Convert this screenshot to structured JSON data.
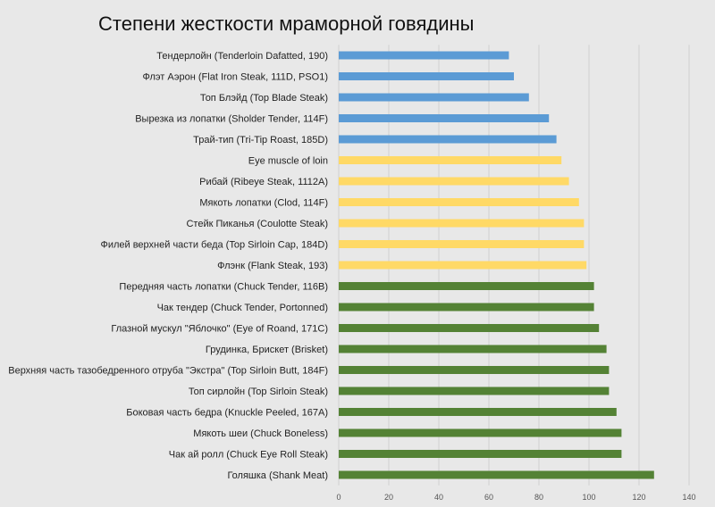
{
  "chart_data": {
    "type": "bar",
    "orientation": "horizontal",
    "title": "Степени жесткости мраморной говядины",
    "xlabel": "",
    "ylabel": "",
    "xlim": [
      0,
      140
    ],
    "xticks": [
      0,
      20,
      40,
      60,
      80,
      100,
      120,
      140
    ],
    "grid": true,
    "legend": "none",
    "colors": {
      "blue": "#5b9bd5",
      "yellow": "#ffd966",
      "green": "#548235",
      "grid": "#cfcfcf"
    },
    "categories": [
      "Тендерлойн (Tenderloin Dafatted, 190)",
      "Флэт Аэрон (Flat Iron Steak, 111D, PSO1)",
      "Топ Блэйд (Top Blade Steak)",
      "Вырезка из лопатки (Sholder Tender, 114F)",
      "Трай-тип (Tri-Tip Roast, 185D)",
      "Eye muscle of loin",
      "Рибай (Ribeye Steak, 1112A)",
      "Мякоть лопатки (Clod, 114F)",
      "Стейк Пиканья (Coulotte Steak)",
      "Филей верхней части беда (Top Sirloin Cap, 184D)",
      "Флэнк (Flank Steak, 193)",
      "Передняя часть лопатки (Chuck Tender, 116B)",
      "Чак тендер  (Chuck Tender, Portonned)",
      "Глазной мускул \"Яблочко\" (Eye of Roand, 171C)",
      "Грудинка, Брискет (Brisket)",
      "Верхняя часть тазобедренного отруба \"Экстра\" (Top Sirloin Butt, 184F)",
      "Топ сирлойн (Top Sirloin Steak)",
      "Боковая часть бедра (Knuckle Peeled, 167A)",
      "Мякоть шеи (Chuck Boneless)",
      "Чак ай ролл (Chuck Eye Roll Steak)",
      "Голяшка (Shank Meat)"
    ],
    "values": [
      68,
      70,
      76,
      84,
      87,
      89,
      92,
      96,
      98,
      98,
      99,
      102,
      102,
      104,
      107,
      108,
      108,
      111,
      113,
      113,
      126
    ],
    "bar_colors": [
      "blue",
      "blue",
      "blue",
      "blue",
      "blue",
      "yellow",
      "yellow",
      "yellow",
      "yellow",
      "yellow",
      "yellow",
      "green",
      "green",
      "green",
      "green",
      "green",
      "green",
      "green",
      "green",
      "green",
      "green"
    ]
  }
}
